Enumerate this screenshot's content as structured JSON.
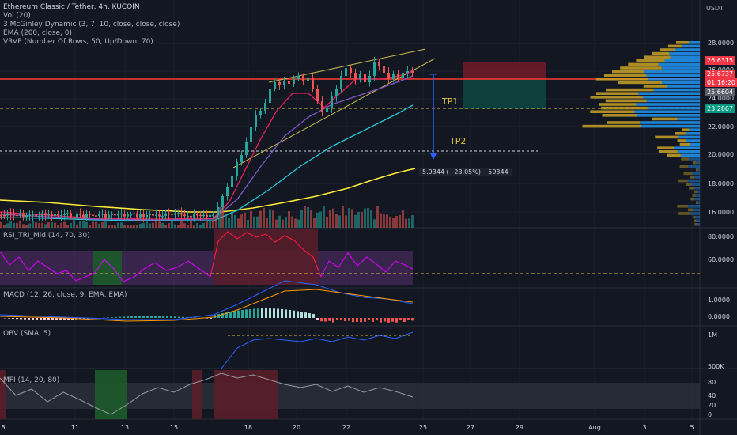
{
  "header": {
    "title": "Ethereum Classic / Tether, 4h, KUCOIN",
    "indicators": [
      "Vol (20)",
      "3 McGinley Dynamic (3, 7, 10, close, close, close)",
      "EMA (200, close, 0)",
      "VRVP (Number Of Rows, 50, Up/Down, 70)"
    ]
  },
  "price_axis": {
    "currency": "USDT",
    "ticks": [
      "28.0000",
      "26.0000",
      "24.0000",
      "22.0000",
      "20.0000",
      "18.0000",
      "16.0000"
    ],
    "tags": [
      {
        "text": "26.6315",
        "color": "#f23645"
      },
      {
        "text": "25.6737",
        "color": "#f23645"
      },
      {
        "text": "01:16:20",
        "color": "#f23645"
      },
      {
        "text": "25.6604",
        "color": "#5d606b"
      },
      {
        "text": "23.2867",
        "color": "#089981"
      }
    ]
  },
  "annotations": {
    "tp1": "TP1",
    "tp2": "TP2",
    "measure": "5.9344 (−23.05%) −59344"
  },
  "panes": {
    "rsi": {
      "label": "RSI_TRI_Mid (14, 70, 30)",
      "ticks": [
        "80.0000",
        "60.0000"
      ]
    },
    "macd": {
      "label": "MACD (12, 26, close, 9, EMA, EMA)",
      "ticks": [
        "1.0000",
        "0.0000"
      ]
    },
    "obv": {
      "label": "OBV (SMA, 5)",
      "ticks": [
        "1M",
        "500K"
      ]
    },
    "mfi": {
      "label": "MFI (14, 20, 80)",
      "ticks": [
        "80",
        "40",
        "20",
        "0"
      ]
    }
  },
  "time_axis": [
    "8",
    "11",
    "13",
    "15",
    "18",
    "20",
    "22",
    "25",
    "27",
    "29",
    "Aug",
    "3",
    "5"
  ],
  "colors": {
    "background": "#131722",
    "up": "#26a69a",
    "down": "#ef5350",
    "ema200": "#ffeb3b",
    "mcg_fast": "#e91e63",
    "mcg_mid": "#7e57c2",
    "mcg_slow": "#26c6da"
  }
}
